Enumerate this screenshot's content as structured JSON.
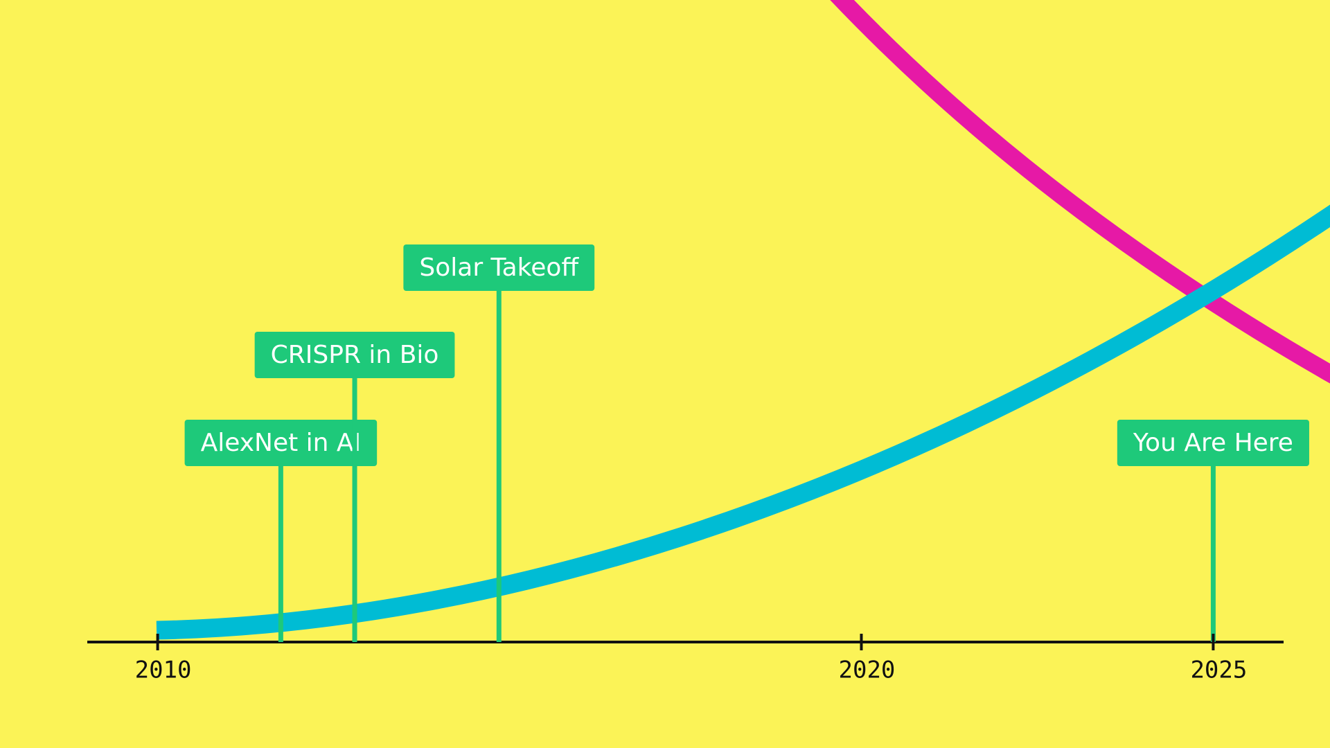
{
  "chart_data": {
    "type": "timeline",
    "events": [
      {
        "label": "AlexNet in AI",
        "x": 2011.75
      },
      {
        "label": "CRISPR in Bio",
        "x": 2012.8
      },
      {
        "label": "Solar Takeoff",
        "x": 2014.85
      },
      {
        "label": "You Are Here",
        "x": 2025
      }
    ],
    "xlim": [
      2009,
      2026
    ],
    "xticks": [
      2010,
      2020,
      2025
    ],
    "background": "#fbf357",
    "event_color": "#1ec97a",
    "axis_color": "#111111"
  }
}
